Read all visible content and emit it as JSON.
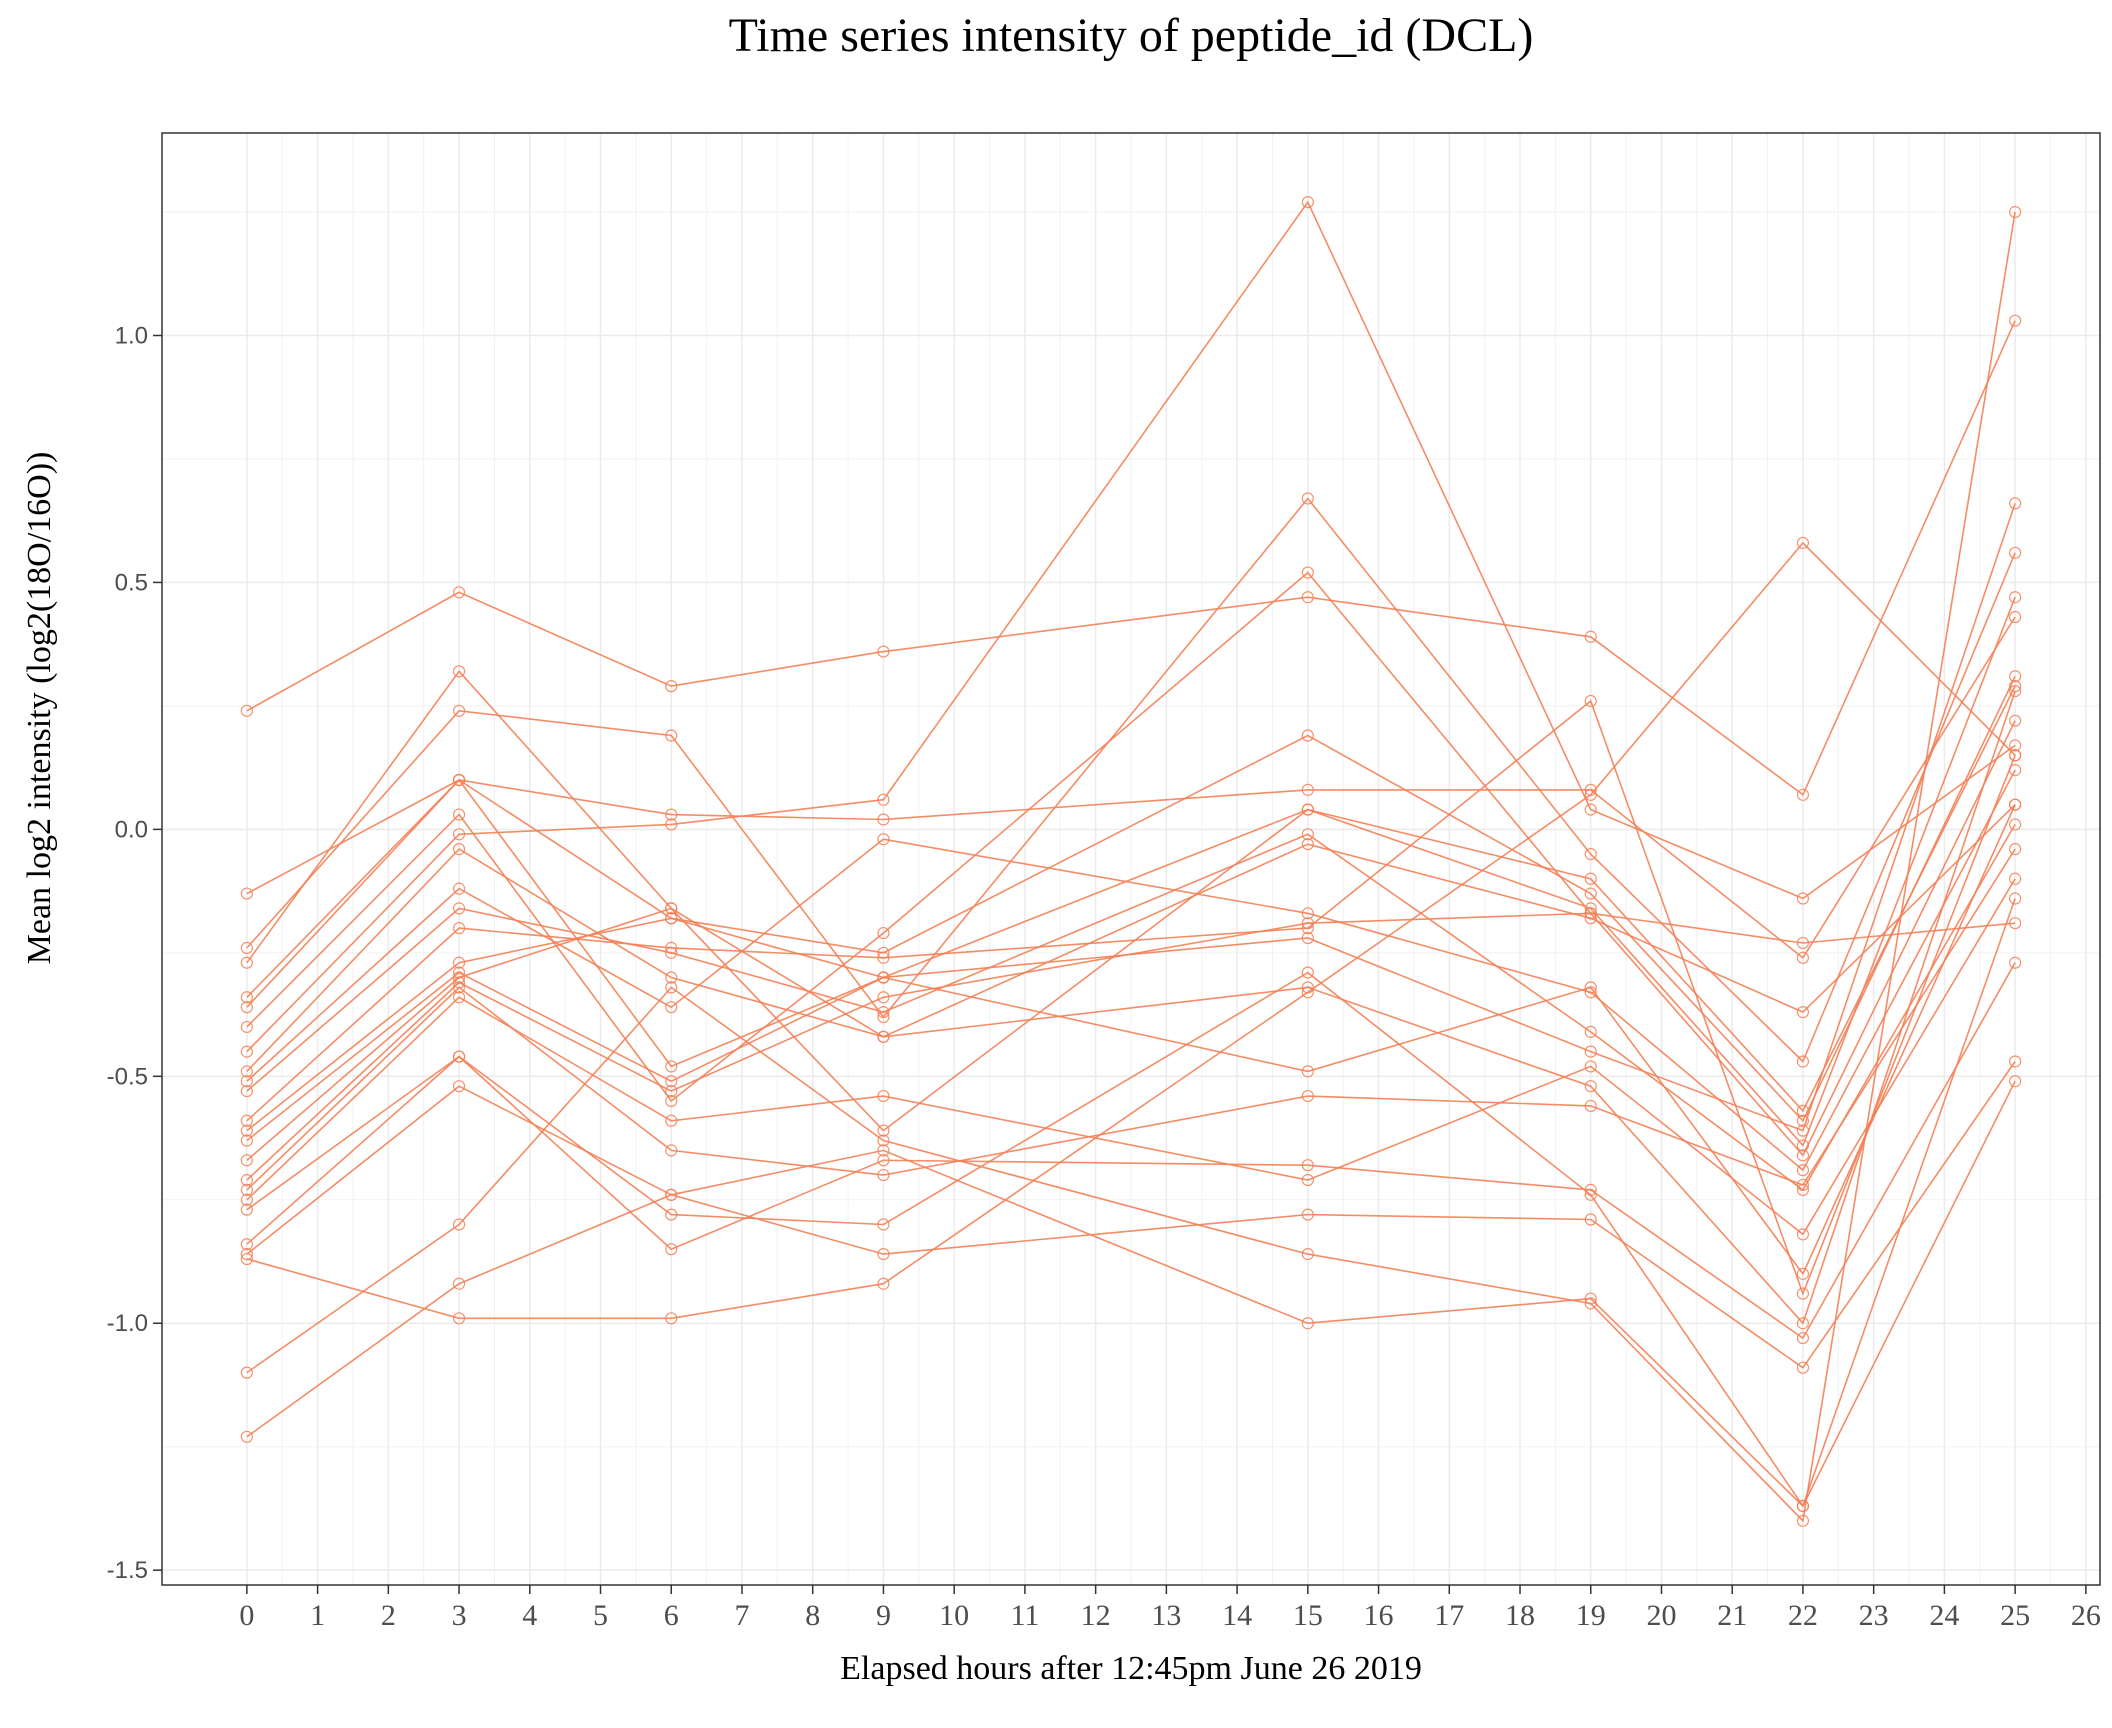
{
  "chart_data": {
    "type": "line",
    "title": "Time series intensity of peptide_id (DCL)",
    "xlabel": "Elapsed hours after 12:45pm June 26 2019",
    "ylabel": "Mean log2 intensity (log2(18O/16O))",
    "xlim": [
      -1.2,
      26.2
    ],
    "ylim": [
      -1.53,
      1.41
    ],
    "x_ticks": [
      0,
      1,
      2,
      3,
      4,
      5,
      6,
      7,
      8,
      9,
      10,
      11,
      12,
      13,
      14,
      15,
      16,
      17,
      18,
      19,
      20,
      21,
      22,
      23,
      24,
      25,
      26
    ],
    "y_ticks": [
      1.0,
      0.5,
      0.0,
      -0.5,
      -1.0,
      -1.5
    ],
    "y_tick_labels": [
      "1.0",
      "0.5",
      "0.0",
      "-0.5",
      "-1.0",
      "-1.5"
    ],
    "grid": true,
    "legend": "none",
    "line_color": "#f47f55",
    "x": [
      0,
      3,
      6,
      9,
      15,
      19,
      22,
      25
    ],
    "series": [
      {
        "values": [
          0.24,
          0.48,
          0.29,
          0.36,
          0.47,
          0.39,
          0.07,
          1.03
        ]
      },
      {
        "values": [
          -0.13,
          0.1,
          0.03,
          0.02,
          0.08,
          0.08,
          -0.26,
          0.43
        ]
      },
      {
        "values": [
          -0.24,
          0.24,
          0.19,
          -0.38,
          0.67,
          -0.05,
          -0.47,
          0.56
        ]
      },
      {
        "values": [
          -0.27,
          0.32,
          -0.16,
          -0.61,
          0.04,
          -0.1,
          -0.57,
          0.29
        ]
      },
      {
        "values": [
          -0.34,
          0.1,
          -0.18,
          -0.25,
          0.19,
          -0.13,
          -0.59,
          0.31
        ]
      },
      {
        "values": [
          -0.36,
          0.1,
          -0.48,
          -0.3,
          0.04,
          -0.16,
          -0.64,
          0.47
        ]
      },
      {
        "values": [
          -0.4,
          0.03,
          -0.55,
          -0.21,
          0.52,
          -0.17,
          -0.66,
          0.22
        ]
      },
      {
        "values": [
          -0.45,
          -0.01,
          0.01,
          0.06,
          1.27,
          0.04,
          -0.14,
          0.17
        ]
      },
      {
        "values": [
          -0.49,
          -0.04,
          -0.3,
          -0.42,
          -0.03,
          -0.18,
          -0.37,
          0.05
        ]
      },
      {
        "values": [
          -0.51,
          -0.12,
          -0.36,
          -0.02,
          -0.17,
          -0.33,
          -0.69,
          0.12
        ]
      },
      {
        "values": [
          -0.53,
          -0.16,
          -0.25,
          -0.37,
          -0.01,
          -0.41,
          -0.73,
          0.01
        ]
      },
      {
        "values": [
          -0.59,
          -0.2,
          -0.24,
          -0.26,
          -0.2,
          0.26,
          -0.94,
          0.15
        ]
      },
      {
        "values": [
          -0.61,
          -0.27,
          -0.18,
          -0.3,
          -0.22,
          -0.45,
          -0.61,
          0.66
        ]
      },
      {
        "values": [
          -0.63,
          -0.29,
          -0.51,
          -0.3,
          -0.49,
          -0.32,
          -0.9,
          0.05
        ]
      },
      {
        "values": [
          -0.67,
          -0.3,
          -0.16,
          -0.42,
          -0.32,
          -0.52,
          -1.0,
          0.28
        ]
      },
      {
        "values": [
          -0.71,
          -0.31,
          -0.53,
          -0.34,
          -0.19,
          -0.17,
          -0.23,
          -0.19
        ]
      },
      {
        "values": [
          -0.73,
          -0.32,
          -0.65,
          -0.7,
          -0.54,
          -0.56,
          -0.72,
          -0.04
        ]
      },
      {
        "values": [
          -0.75,
          -0.34,
          -0.59,
          -0.54,
          -0.71,
          -0.48,
          -0.82,
          -0.1
        ]
      },
      {
        "values": [
          -0.77,
          -0.46,
          -0.78,
          -0.8,
          -0.29,
          -0.74,
          -1.37,
          -0.14
        ]
      },
      {
        "values": [
          -0.84,
          -0.46,
          -0.85,
          -0.67,
          -0.68,
          -0.73,
          -1.03,
          -0.27
        ]
      },
      {
        "values": [
          -0.86,
          -0.52,
          -0.74,
          -0.86,
          -0.78,
          -0.79,
          -1.09,
          -0.47
        ]
      },
      {
        "values": [
          -0.87,
          -0.99,
          -0.99,
          -0.92,
          -0.33,
          0.07,
          0.58,
          0.15
        ]
      },
      {
        "values": [
          -1.1,
          -0.8,
          -0.32,
          -0.63,
          -0.86,
          -0.96,
          -1.4,
          1.25
        ]
      },
      {
        "values": [
          -1.23,
          -0.92,
          -0.74,
          -0.65,
          -1.0,
          -0.95,
          -1.37,
          -0.51
        ]
      }
    ]
  }
}
